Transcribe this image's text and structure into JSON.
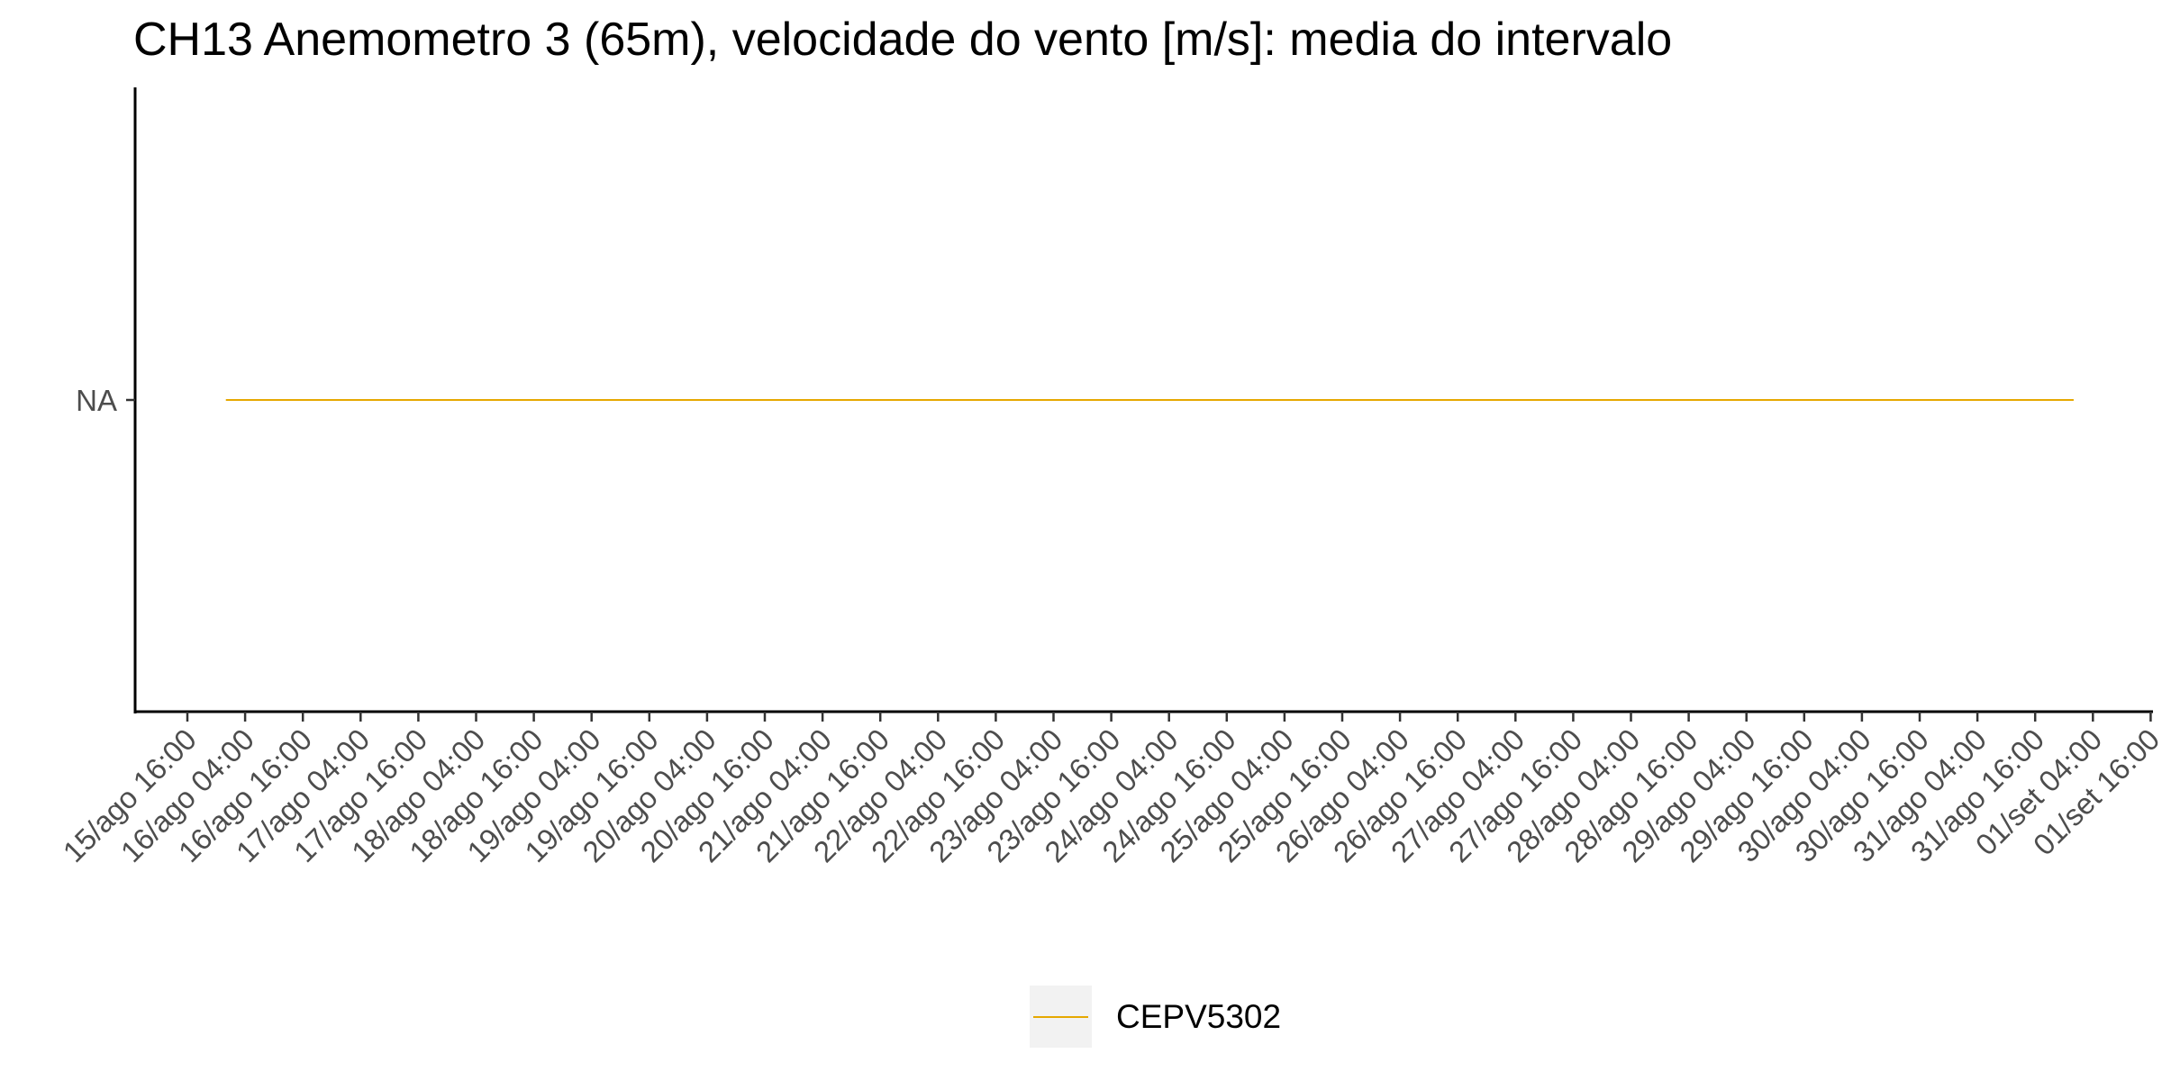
{
  "chart_data": {
    "type": "line",
    "title": "CH13 Anemometro 3 (65m), velocidade do vento [m/s]: media do intervalo",
    "xlabel": "",
    "ylabel": "",
    "y_tick_labels": [
      "NA"
    ],
    "x_tick_labels": [
      "15/ago 16:00",
      "16/ago 04:00",
      "16/ago 16:00",
      "17/ago 04:00",
      "17/ago 16:00",
      "18/ago 04:00",
      "18/ago 16:00",
      "19/ago 04:00",
      "19/ago 16:00",
      "20/ago 04:00",
      "20/ago 16:00",
      "21/ago 04:00",
      "21/ago 16:00",
      "22/ago 04:00",
      "22/ago 16:00",
      "23/ago 04:00",
      "23/ago 16:00",
      "24/ago 04:00",
      "24/ago 16:00",
      "25/ago 04:00",
      "25/ago 16:00",
      "26/ago 04:00",
      "26/ago 16:00",
      "27/ago 04:00",
      "27/ago 16:00",
      "28/ago 04:00",
      "28/ago 16:00",
      "29/ago 04:00",
      "29/ago 16:00",
      "30/ago 04:00",
      "30/ago 16:00",
      "31/ago 04:00",
      "31/ago 16:00",
      "01/set 04:00",
      "01/set 16:00"
    ],
    "series": [
      {
        "name": "CEPV5302",
        "color": "#E6A800",
        "x_start": "16/ago 00:00",
        "x_end": "01/set 00:00",
        "y": "NA"
      }
    ],
    "legend_position": "bottom",
    "grid": false
  }
}
